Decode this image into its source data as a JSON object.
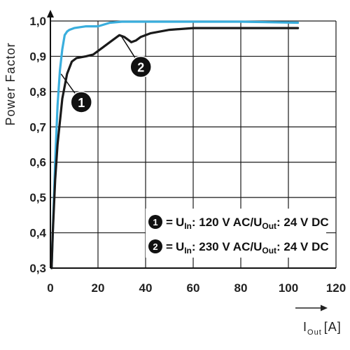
{
  "chart_data": {
    "type": "line",
    "ylabel": "Power Factor",
    "xlabel": {
      "main": "I",
      "sub": "Out",
      "unit": "[A]"
    },
    "xlim": [
      0,
      120
    ],
    "ylim": [
      0.3,
      1.0
    ],
    "x_ticks": [
      "0",
      "20",
      "40",
      "60",
      "80",
      "100",
      "120"
    ],
    "y_ticks": [
      "0,3",
      "0,4",
      "0,5",
      "0,6",
      "0,7",
      "0,8",
      "0,9",
      "1,0"
    ],
    "grid": true,
    "series": [
      {
        "marker": "1",
        "color": "#3aaedd",
        "points": [
          [
            0.5,
            0.3
          ],
          [
            1,
            0.4
          ],
          [
            2,
            0.6
          ],
          [
            3,
            0.76
          ],
          [
            4,
            0.86
          ],
          [
            5,
            0.92
          ],
          [
            6,
            0.96
          ],
          [
            7,
            0.97
          ],
          [
            8,
            0.975
          ],
          [
            10,
            0.98
          ],
          [
            15,
            0.985
          ],
          [
            20,
            0.985
          ],
          [
            25,
            0.995
          ],
          [
            30,
            0.998
          ],
          [
            40,
            0.998
          ],
          [
            60,
            0.998
          ],
          [
            80,
            0.998
          ],
          [
            104,
            0.995
          ]
        ]
      },
      {
        "marker": "2",
        "color": "#1a1a1a",
        "points": [
          [
            0.5,
            0.3
          ],
          [
            1,
            0.4
          ],
          [
            2,
            0.55
          ],
          [
            3,
            0.65
          ],
          [
            5,
            0.78
          ],
          [
            7,
            0.85
          ],
          [
            9,
            0.885
          ],
          [
            11,
            0.895
          ],
          [
            15,
            0.9
          ],
          [
            18,
            0.905
          ],
          [
            22,
            0.925
          ],
          [
            26,
            0.945
          ],
          [
            29,
            0.96
          ],
          [
            31,
            0.955
          ],
          [
            33,
            0.945
          ],
          [
            34,
            0.94
          ],
          [
            36,
            0.945
          ],
          [
            38,
            0.955
          ],
          [
            42,
            0.965
          ],
          [
            50,
            0.975
          ],
          [
            60,
            0.98
          ],
          [
            80,
            0.98
          ],
          [
            104,
            0.98
          ]
        ]
      }
    ],
    "annotations": [
      {
        "label": "1",
        "x": 13,
        "y": 0.77
      },
      {
        "label": "2",
        "x": 38,
        "y": 0.87
      }
    ],
    "legend": {
      "placement": "bottom-right",
      "entries": [
        {
          "marker": "1",
          "prefix": "=",
          "u1": "U",
          "u1_sub": "In",
          "mid": ": 120 V AC/",
          "u2": "U",
          "u2_sub": "Out",
          "suffix": ": 24 V DC"
        },
        {
          "marker": "2",
          "prefix": "=",
          "u1": "U",
          "u1_sub": "In",
          "mid": ": 230 V AC/",
          "u2": "U",
          "u2_sub": "Out",
          "suffix": ": 24 V DC"
        }
      ]
    }
  }
}
